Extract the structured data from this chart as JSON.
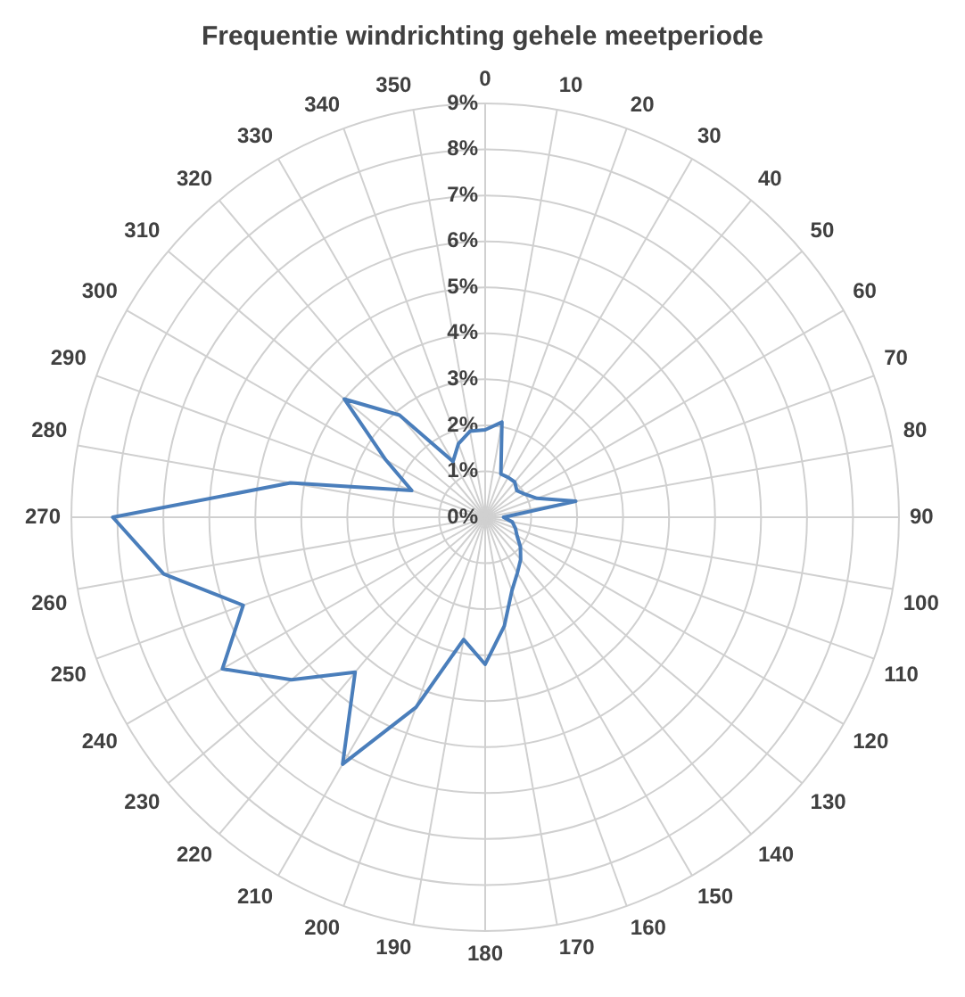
{
  "chart_data": {
    "type": "radar",
    "title": "Frequentie windrichting gehele meetperiode",
    "categories": [
      "0",
      "10",
      "20",
      "30",
      "40",
      "50",
      "60",
      "70",
      "80",
      "90",
      "100",
      "110",
      "120",
      "130",
      "140",
      "150",
      "160",
      "170",
      "180",
      "190",
      "200",
      "210",
      "220",
      "230",
      "240",
      "250",
      "260",
      "270",
      "280",
      "290",
      "300",
      "310",
      "320",
      "330",
      "340",
      "350"
    ],
    "series": [
      {
        "color": "#4a7ebb",
        "values": [
          1.9,
          2.1,
          1.0,
          1.0,
          1.0,
          0.9,
          1.0,
          1.2,
          2.0,
          0.4,
          0.6,
          0.7,
          0.8,
          1.0,
          1.2,
          1.4,
          1.7,
          2.4,
          3.2,
          2.7,
          4.4,
          6.2,
          4.4,
          5.5,
          6.6,
          5.6,
          7.1,
          8.1,
          4.3,
          1.7,
          2.5,
          4.0,
          2.9,
          1.4,
          1.7,
          1.9
        ]
      }
    ],
    "ylim": [
      0,
      9
    ],
    "yticks": [
      {
        "value": 0,
        "label": "0%"
      },
      {
        "value": 1,
        "label": "1%"
      },
      {
        "value": 2,
        "label": "2%"
      },
      {
        "value": 3,
        "label": "3%"
      },
      {
        "value": 4,
        "label": "4%"
      },
      {
        "value": 5,
        "label": "5%"
      },
      {
        "value": 6,
        "label": "6%"
      },
      {
        "value": 7,
        "label": "7%"
      },
      {
        "value": 8,
        "label": "8%"
      },
      {
        "value": 9,
        "label": "9%"
      }
    ],
    "grid": true,
    "legend": false,
    "marker": "none",
    "line_style": "solid"
  }
}
